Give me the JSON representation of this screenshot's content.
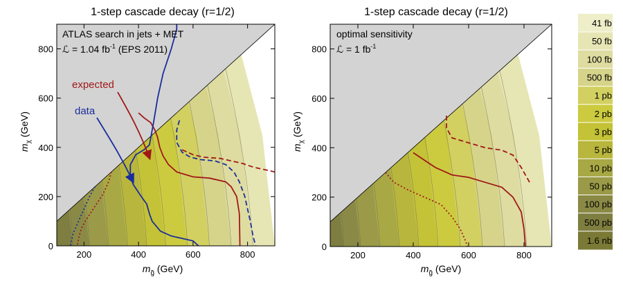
{
  "chart_data": [
    {
      "type": "heatmap",
      "title": "1-step cascade decay (r=1/2)",
      "xlabel": "m_g̃ (GeV)",
      "xlabel_parts": {
        "main": "m",
        "sub": "g̃",
        "unit": " (GeV)"
      },
      "ylabel": "m_χ (GeV)",
      "ylabel_parts": {
        "main": "m",
        "sub": "χ",
        "unit": " (GeV)"
      },
      "xlim": [
        100,
        900
      ],
      "ylim": [
        0,
        900
      ],
      "xticks": [
        200,
        400,
        600,
        800
      ],
      "xtick_labels": [
        "200",
        "400",
        "600",
        "800"
      ],
      "yticks": [
        0,
        200,
        400,
        600,
        800
      ],
      "ytick_labels": [
        "0",
        "200",
        "400",
        "600",
        "800"
      ],
      "annotation_lines": [
        "ATLAS search in jets + MET",
        "ℒ = 1.04 fb",
        "-1",
        " (EPS 2011)"
      ],
      "labels": [
        {
          "text": "expected",
          "color": "#a01818"
        },
        {
          "text": "data",
          "color": "#1a2d9c"
        }
      ],
      "excluded_region": "m_χ > m_g̃ (gray)",
      "contours_x": [
        160,
        220,
        290,
        360,
        430,
        500,
        580,
        660,
        740,
        820
      ],
      "curves": [
        {
          "name": "expected",
          "style": "solid",
          "color": "#a01818",
          "points": [
            [
              400,
              540
            ],
            [
              420,
              520
            ],
            [
              445,
              500
            ],
            [
              460,
              470
            ],
            [
              470,
              440
            ],
            [
              478,
              400
            ],
            [
              490,
              365
            ],
            [
              510,
              330
            ],
            [
              540,
              300
            ],
            [
              600,
              280
            ],
            [
              660,
              275
            ],
            [
              720,
              260
            ],
            [
              740,
              240
            ],
            [
              760,
              200
            ],
            [
              770,
              130
            ],
            [
              772,
              0
            ]
          ]
        },
        {
          "name": "data",
          "style": "solid",
          "color": "#1a2d9c",
          "points": [
            [
              540,
              900
            ],
            [
              540,
              880
            ],
            [
              520,
              800
            ],
            [
              490,
              700
            ],
            [
              470,
              600
            ],
            [
              455,
              500
            ],
            [
              440,
              410
            ],
            [
              420,
              390
            ],
            [
              390,
              370
            ],
            [
              370,
              330
            ],
            [
              370,
              290
            ],
            [
              380,
              250
            ],
            [
              410,
              200
            ],
            [
              430,
              170
            ],
            [
              440,
              130
            ],
            [
              450,
              100
            ],
            [
              480,
              60
            ],
            [
              520,
              40
            ],
            [
              560,
              30
            ],
            [
              600,
              20
            ],
            [
              620,
              0
            ]
          ]
        },
        {
          "name": "expected-dashed",
          "style": "dashed",
          "color": "#1a2d9c",
          "points": [
            [
              550,
              510
            ],
            [
              540,
              470
            ],
            [
              540,
              420
            ],
            [
              560,
              380
            ],
            [
              590,
              360
            ],
            [
              630,
              350
            ],
            [
              680,
              345
            ],
            [
              720,
              330
            ],
            [
              750,
              300
            ],
            [
              770,
              260
            ],
            [
              790,
              200
            ],
            [
              800,
              150
            ],
            [
              810,
              100
            ],
            [
              820,
              40
            ],
            [
              830,
              0
            ]
          ]
        },
        {
          "name": "data-dashed",
          "style": "dashed",
          "color": "#a01818",
          "points": [
            [
              560,
              390
            ],
            [
              600,
              370
            ],
            [
              640,
              360
            ],
            [
              700,
              355
            ],
            [
              740,
              345
            ],
            [
              780,
              335
            ],
            [
              820,
              320
            ],
            [
              860,
              310
            ],
            [
              900,
              300
            ]
          ]
        },
        {
          "name": "expected-dotted",
          "style": "dotted",
          "color": "#a01818",
          "points": [
            [
              300,
              300
            ],
            [
              290,
              260
            ],
            [
              270,
              210
            ],
            [
              240,
              160
            ],
            [
              210,
              110
            ],
            [
              190,
              70
            ],
            [
              180,
              30
            ],
            [
              175,
              0
            ]
          ]
        },
        {
          "name": "data-dotted",
          "style": "dotted",
          "color": "#1a2d9c",
          "points": [
            [
              240,
              240
            ],
            [
              220,
              200
            ],
            [
              200,
              150
            ],
            [
              180,
              100
            ],
            [
              160,
              50
            ],
            [
              150,
              0
            ]
          ]
        }
      ]
    },
    {
      "type": "heatmap",
      "title": "1-step cascade decay (r=1/2)",
      "xlabel": "m_g̃ (GeV)",
      "xlabel_parts": {
        "main": "m",
        "sub": "g̃",
        "unit": " (GeV)"
      },
      "ylabel": "m_χ (GeV)",
      "ylabel_parts": {
        "main": "m",
        "sub": "χ",
        "unit": " (GeV)"
      },
      "xlim": [
        100,
        900
      ],
      "ylim": [
        0,
        900
      ],
      "xticks": [
        200,
        400,
        600,
        800
      ],
      "xtick_labels": [
        "200",
        "400",
        "600",
        "800"
      ],
      "yticks": [
        0,
        200,
        400,
        600,
        800
      ],
      "ytick_labels": [
        "0",
        "200",
        "400",
        "600",
        "800"
      ],
      "annotation_lines": [
        "optimal sensitivity",
        "ℒ = 1 fb",
        "-1"
      ],
      "excluded_region": "m_χ > m_g̃ (gray)",
      "contours_x": [
        150,
        210,
        280,
        350,
        420,
        490,
        570,
        650,
        730,
        810
      ],
      "curves": [
        {
          "name": "solid",
          "style": "solid",
          "color": "#a01818",
          "points": [
            [
              400,
              380
            ],
            [
              440,
              350
            ],
            [
              480,
              320
            ],
            [
              540,
              290
            ],
            [
              600,
              280
            ],
            [
              660,
              260
            ],
            [
              720,
              240
            ],
            [
              760,
              200
            ],
            [
              790,
              140
            ],
            [
              800,
              70
            ],
            [
              805,
              0
            ]
          ]
        },
        {
          "name": "dashed",
          "style": "dashed",
          "color": "#a01818",
          "points": [
            [
              520,
              530
            ],
            [
              520,
              480
            ],
            [
              540,
              440
            ],
            [
              600,
              420
            ],
            [
              660,
              400
            ],
            [
              720,
              390
            ],
            [
              760,
              370
            ],
            [
              790,
              320
            ],
            [
              810,
              280
            ],
            [
              820,
              260
            ]
          ]
        },
        {
          "name": "dotted",
          "style": "dotted",
          "color": "#a01818",
          "points": [
            [
              300,
              300
            ],
            [
              330,
              260
            ],
            [
              380,
              230
            ],
            [
              440,
              200
            ],
            [
              500,
              170
            ],
            [
              540,
              120
            ],
            [
              570,
              70
            ],
            [
              590,
              20
            ],
            [
              595,
              0
            ]
          ]
        }
      ]
    }
  ],
  "legend": {
    "title": "",
    "levels": [
      "41 fb",
      "50 fb",
      "100 fb",
      "500 fb",
      "1 pb",
      "2 pb",
      "3 pb",
      "5 pb",
      "10 pb",
      "50 pb",
      "100 pb",
      "500 pb",
      "1.6 nb"
    ],
    "colors": [
      "#eeeec8",
      "#e6e6b4",
      "#dedca0",
      "#d6d48a",
      "#d2d060",
      "#cccb40",
      "#c4c236",
      "#b8b63c",
      "#a8a845",
      "#9a9a48",
      "#8a8a46",
      "#7e7e40",
      "#7a7a36"
    ]
  },
  "colors": {
    "excluded": "#d3d3d3",
    "expected": "#a01818",
    "data": "#1a2d9c",
    "contour_line": "#6b6b50"
  }
}
